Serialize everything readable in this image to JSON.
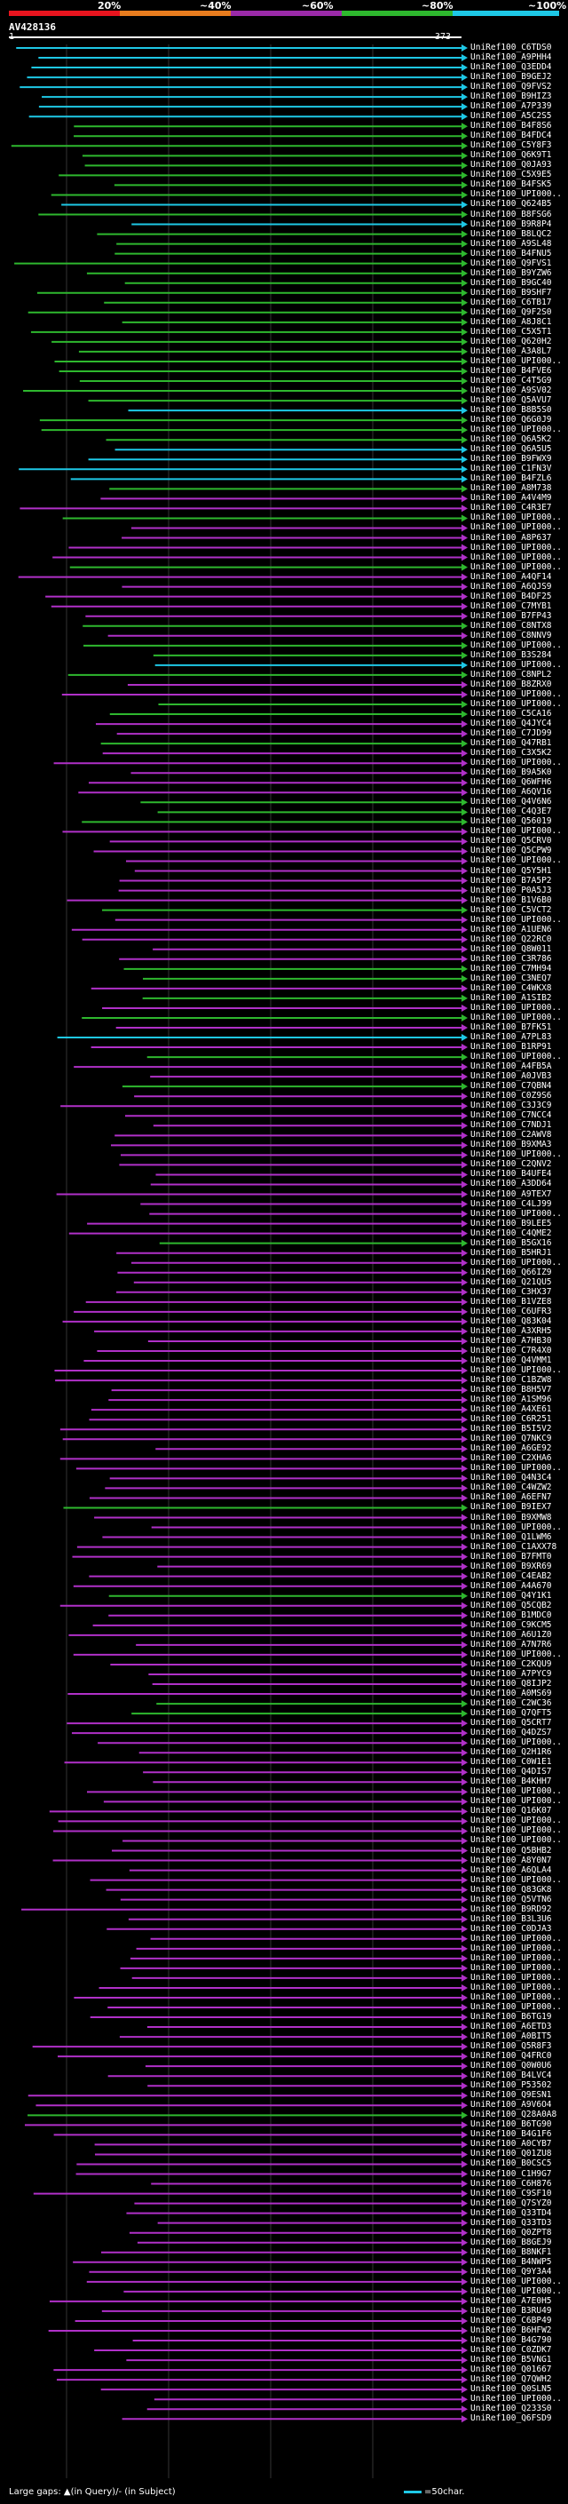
{
  "scale": {
    "ticks": [
      "20%",
      "~40%",
      "~60%",
      "~80%",
      "~100%"
    ],
    "colors": [
      "#e8141e",
      "#e87c1e",
      "#9a2aa8",
      "#2eb82e",
      "#1ec8e6"
    ]
  },
  "query": {
    "title": "AV428136",
    "start": "1",
    "end": "373"
  },
  "footer": {
    "gaps": "Large gaps: ▲(in Query)/- (in Subject)",
    "legend": "=50char."
  },
  "colors": {
    "cyan": "#1ec8e6",
    "green": "#2eb82e",
    "magenta": "#b030c8"
  },
  "hits": [
    {
      "label": "UniRef100_C6TDS0",
      "c": "cyan"
    },
    {
      "label": "UniRef100_A9PHH4",
      "c": "cyan"
    },
    {
      "label": "UniRef100_Q3EDD4",
      "c": "cyan"
    },
    {
      "label": "UniRef100_B9GEJ2",
      "c": "cyan"
    },
    {
      "label": "UniRef100_Q9FVS2",
      "c": "cyan"
    },
    {
      "label": "UniRef100_B9HIZ3",
      "c": "cyan"
    },
    {
      "label": "UniRef100_A7P339",
      "c": "cyan"
    },
    {
      "label": "UniRef100_A5C2S5",
      "c": "cyan"
    },
    {
      "label": "UniRef100_B4F8S6",
      "c": "green"
    },
    {
      "label": "UniRef100_B4FDC4",
      "c": "green"
    },
    {
      "label": "UniRef100_C5Y8F3",
      "c": "green"
    },
    {
      "label": "UniRef100_Q6K9T1",
      "c": "green"
    },
    {
      "label": "UniRef100_Q0JA93",
      "c": "green"
    },
    {
      "label": "UniRef100_C5X9E5",
      "c": "green"
    },
    {
      "label": "UniRef100_B4FSK5",
      "c": "green"
    },
    {
      "label": "UniRef100_UPI000..",
      "c": "green"
    },
    {
      "label": "UniRef100_Q624B5",
      "c": "cyan"
    },
    {
      "label": "UniRef100_B8FSG6",
      "c": "green"
    },
    {
      "label": "UniRef100_B9R8P4",
      "c": "cyan"
    },
    {
      "label": "UniRef100_B8LQC2",
      "c": "green"
    },
    {
      "label": "UniRef100_A9SL48",
      "c": "green"
    },
    {
      "label": "UniRef100_B4FNU5",
      "c": "green"
    },
    {
      "label": "UniRef100_Q9FVS1",
      "c": "green"
    },
    {
      "label": "UniRef100_B9YZW6",
      "c": "green"
    },
    {
      "label": "UniRef100_B9GC40",
      "c": "green"
    },
    {
      "label": "UniRef100_B9SHF7",
      "c": "green"
    },
    {
      "label": "UniRef100_C6TB17",
      "c": "green"
    },
    {
      "label": "UniRef100_Q9F2S0",
      "c": "green"
    },
    {
      "label": "UniRef100_A8J8C1",
      "c": "green"
    },
    {
      "label": "UniRef100_C5X5T1",
      "c": "green"
    },
    {
      "label": "UniRef100_Q620H2",
      "c": "green"
    },
    {
      "label": "UniRef100_A3A8L7",
      "c": "green"
    },
    {
      "label": "UniRef100_UPI000..",
      "c": "green"
    },
    {
      "label": "UniRef100_B4FVE6",
      "c": "green"
    },
    {
      "label": "UniRef100_C4T5G9",
      "c": "green"
    },
    {
      "label": "UniRef100_A9SV02",
      "c": "green"
    },
    {
      "label": "UniRef100_Q5AVU7",
      "c": "green"
    },
    {
      "label": "UniRef100_B8B5S0",
      "c": "cyan"
    },
    {
      "label": "UniRef100_Q6G0J9",
      "c": "green"
    },
    {
      "label": "UniRef100_UPI000..",
      "c": "green"
    },
    {
      "label": "UniRef100_Q6A5K2",
      "c": "green"
    },
    {
      "label": "UniRef100_Q6A5U5",
      "c": "cyan"
    },
    {
      "label": "UniRef100_B9FWX9",
      "c": "cyan"
    },
    {
      "label": "UniRef100_C1FN3V",
      "c": "cyan"
    },
    {
      "label": "UniRef100_B4FZL6",
      "c": "cyan"
    },
    {
      "label": "UniRef100_A8M738",
      "c": "green"
    },
    {
      "label": "UniRef100_A4V4M9",
      "c": "magenta"
    },
    {
      "label": "UniRef100_C4R3E7",
      "c": "magenta"
    },
    {
      "label": "UniRef100_UPI000..",
      "c": "green"
    },
    {
      "label": "UniRef100_UPI000..",
      "c": "magenta"
    },
    {
      "label": "UniRef100_A8P637",
      "c": "magenta"
    },
    {
      "label": "UniRef100_UPI000..",
      "c": "magenta"
    },
    {
      "label": "UniRef100_UPI000..",
      "c": "magenta"
    },
    {
      "label": "UniRef100_UPI000..",
      "c": "green"
    },
    {
      "label": "UniRef100_A4QF14",
      "c": "magenta"
    },
    {
      "label": "UniRef100_A6QJS9",
      "c": "magenta"
    },
    {
      "label": "UniRef100_B4DF25",
      "c": "magenta"
    },
    {
      "label": "UniRef100_C7MYB1",
      "c": "magenta"
    },
    {
      "label": "UniRef100_B7FP43",
      "c": "magenta"
    },
    {
      "label": "UniRef100_C8NTX8",
      "c": "green"
    },
    {
      "label": "UniRef100_C8NNV9",
      "c": "magenta"
    },
    {
      "label": "UniRef100_UPI000..",
      "c": "green"
    },
    {
      "label": "UniRef100_B3S284",
      "c": "green"
    },
    {
      "label": "UniRef100_UPI000..",
      "c": "cyan"
    },
    {
      "label": "UniRef100_C8NPL2",
      "c": "green"
    },
    {
      "label": "UniRef100_B8ZRX0",
      "c": "magenta"
    },
    {
      "label": "UniRef100_UPI000..",
      "c": "magenta"
    },
    {
      "label": "UniRef100_UPI000..",
      "c": "green"
    },
    {
      "label": "UniRef100_C5CA16",
      "c": "green"
    },
    {
      "label": "UniRef100_Q4JYC4",
      "c": "magenta"
    },
    {
      "label": "UniRef100_C7JD99",
      "c": "magenta"
    },
    {
      "label": "UniRef100_Q47RB1",
      "c": "green"
    },
    {
      "label": "UniRef100_C3X5K2",
      "c": "magenta"
    },
    {
      "label": "UniRef100_UPI000..",
      "c": "magenta"
    },
    {
      "label": "UniRef100_B9A5K0",
      "c": "magenta"
    },
    {
      "label": "UniRef100_Q6WFH6",
      "c": "magenta"
    },
    {
      "label": "UniRef100_A6QV16",
      "c": "magenta"
    },
    {
      "label": "UniRef100_Q4V6N6",
      "c": "green"
    },
    {
      "label": "UniRef100_C4Q3E7",
      "c": "green"
    },
    {
      "label": "UniRef100_Q56019",
      "c": "green"
    },
    {
      "label": "UniRef100_UPI000..",
      "c": "magenta"
    },
    {
      "label": "UniRef100_Q5CRV0",
      "c": "magenta"
    },
    {
      "label": "UniRef100_Q5CPW9",
      "c": "magenta"
    },
    {
      "label": "UniRef100_UPI000..",
      "c": "magenta"
    },
    {
      "label": "UniRef100_Q5Y5H1",
      "c": "magenta"
    },
    {
      "label": "UniRef100_B7A5P2",
      "c": "magenta"
    },
    {
      "label": "UniRef100_P0A5J3",
      "c": "magenta"
    },
    {
      "label": "UniRef100_B1V6B0",
      "c": "magenta"
    },
    {
      "label": "UniRef100_C5VCT2",
      "c": "green"
    },
    {
      "label": "UniRef100_UPI000..",
      "c": "magenta"
    },
    {
      "label": "UniRef100_A1UEN6",
      "c": "magenta"
    },
    {
      "label": "UniRef100_Q22RC0",
      "c": "magenta"
    },
    {
      "label": "UniRef100_Q8W011",
      "c": "magenta"
    },
    {
      "label": "UniRef100_C3R786",
      "c": "magenta"
    },
    {
      "label": "UniRef100_C7MH94",
      "c": "green"
    },
    {
      "label": "UniRef100_C3NEQ7",
      "c": "green"
    },
    {
      "label": "UniRef100_C4WKX8",
      "c": "magenta"
    },
    {
      "label": "UniRef100_A1SIB2",
      "c": "green"
    },
    {
      "label": "UniRef100_UPI000..",
      "c": "magenta"
    },
    {
      "label": "UniRef100_UPI000..",
      "c": "green"
    },
    {
      "label": "UniRef100_B7FK51",
      "c": "magenta"
    },
    {
      "label": "UniRef100_A7PL83",
      "c": "cyan"
    },
    {
      "label": "UniRef100_B1RP91",
      "c": "magenta"
    },
    {
      "label": "UniRef100_UPI000..",
      "c": "green"
    },
    {
      "label": "UniRef100_A4FB5A",
      "c": "magenta"
    },
    {
      "label": "UniRef100_A0JVB3",
      "c": "magenta"
    },
    {
      "label": "UniRef100_C7QBN4",
      "c": "green"
    },
    {
      "label": "UniRef100_C0Z9S6",
      "c": "magenta"
    },
    {
      "label": "UniRef100_C3J3C9",
      "c": "magenta"
    },
    {
      "label": "UniRef100_C7NCC4",
      "c": "magenta"
    },
    {
      "label": "UniRef100_C7NDJ1",
      "c": "magenta"
    },
    {
      "label": "UniRef100_C2AWV8",
      "c": "magenta"
    },
    {
      "label": "UniRef100_B9XMA3",
      "c": "magenta"
    },
    {
      "label": "UniRef100_UPI000..",
      "c": "magenta"
    },
    {
      "label": "UniRef100_C2QNV2",
      "c": "magenta"
    },
    {
      "label": "UniRef100_B4UFE4",
      "c": "magenta"
    },
    {
      "label": "UniRef100_A3DD64",
      "c": "magenta"
    },
    {
      "label": "UniRef100_A9TEX7",
      "c": "magenta"
    },
    {
      "label": "UniRef100_C4LJ99",
      "c": "magenta"
    },
    {
      "label": "UniRef100_UPI000..",
      "c": "magenta"
    },
    {
      "label": "UniRef100_B9LEE5",
      "c": "magenta"
    },
    {
      "label": "UniRef100_C4QME2",
      "c": "magenta"
    },
    {
      "label": "UniRef100_B5GX16",
      "c": "green"
    },
    {
      "label": "UniRef100_B5HRJ1",
      "c": "magenta"
    },
    {
      "label": "UniRef100_UPI000..",
      "c": "magenta"
    },
    {
      "label": "UniRef100_Q66IZ9",
      "c": "magenta"
    },
    {
      "label": "UniRef100_Q21QU5",
      "c": "magenta"
    },
    {
      "label": "UniRef100_C3HX37",
      "c": "magenta"
    },
    {
      "label": "UniRef100_B1VZE8",
      "c": "magenta"
    },
    {
      "label": "UniRef100_C6UFR3",
      "c": "magenta"
    },
    {
      "label": "UniRef100_Q83K04",
      "c": "magenta"
    },
    {
      "label": "UniRef100_A3XRH5",
      "c": "magenta"
    },
    {
      "label": "UniRef100_A7HB30",
      "c": "magenta"
    },
    {
      "label": "UniRef100_C7R4X0",
      "c": "magenta"
    },
    {
      "label": "UniRef100_Q4VMM1",
      "c": "magenta"
    },
    {
      "label": "UniRef100_UPI000..",
      "c": "magenta"
    },
    {
      "label": "UniRef100_C1BZW8",
      "c": "magenta"
    },
    {
      "label": "UniRef100_B8H5V7",
      "c": "magenta"
    },
    {
      "label": "UniRef100_A1SM96",
      "c": "magenta"
    },
    {
      "label": "UniRef100_A4XE61",
      "c": "magenta"
    },
    {
      "label": "UniRef100_C6R251",
      "c": "magenta"
    },
    {
      "label": "UniRef100_B5I5V2",
      "c": "magenta"
    },
    {
      "label": "UniRef100_Q7NKC9",
      "c": "magenta"
    },
    {
      "label": "UniRef100_A6GE92",
      "c": "magenta"
    },
    {
      "label": "UniRef100_C2XHA6",
      "c": "magenta"
    },
    {
      "label": "UniRef100_UPI000..",
      "c": "magenta"
    },
    {
      "label": "UniRef100_Q4N3C4",
      "c": "magenta"
    },
    {
      "label": "UniRef100_C4WZW2",
      "c": "magenta"
    },
    {
      "label": "UniRef100_A6EFN7",
      "c": "magenta"
    },
    {
      "label": "UniRef100_B9IEX7",
      "c": "green"
    },
    {
      "label": "UniRef100_B9XMW8",
      "c": "magenta"
    },
    {
      "label": "UniRef100_UPI000..",
      "c": "magenta"
    },
    {
      "label": "UniRef100_Q1LWM6",
      "c": "magenta"
    },
    {
      "label": "UniRef100_C1AXX78",
      "c": "magenta"
    },
    {
      "label": "UniRef100_B7FMT0",
      "c": "magenta"
    },
    {
      "label": "UniRef100_B9XR69",
      "c": "magenta"
    },
    {
      "label": "UniRef100_C4EAB2",
      "c": "magenta"
    },
    {
      "label": "UniRef100_A4A670",
      "c": "magenta"
    },
    {
      "label": "UniRef100_Q4Y1K1",
      "c": "green"
    },
    {
      "label": "UniRef100_Q5CQB2",
      "c": "magenta"
    },
    {
      "label": "UniRef100_B1MDC0",
      "c": "magenta"
    },
    {
      "label": "UniRef100_C9KCM5",
      "c": "magenta"
    },
    {
      "label": "UniRef100_A6U1Z0",
      "c": "magenta"
    },
    {
      "label": "UniRef100_A7N7R6",
      "c": "magenta"
    },
    {
      "label": "UniRef100_UPI000..",
      "c": "magenta"
    },
    {
      "label": "UniRef100_C2KQU9",
      "c": "magenta"
    },
    {
      "label": "UniRef100_A7PYC9",
      "c": "magenta"
    },
    {
      "label": "UniRef100_Q8IJP2",
      "c": "magenta"
    },
    {
      "label": "UniRef100_A0MS69",
      "c": "magenta"
    },
    {
      "label": "UniRef100_C2WC36",
      "c": "green"
    },
    {
      "label": "UniRef100_Q7QFT5",
      "c": "green"
    },
    {
      "label": "UniRef100_Q5CRT7",
      "c": "magenta"
    },
    {
      "label": "UniRef100_Q4DZS7",
      "c": "magenta"
    },
    {
      "label": "UniRef100_UPI000..",
      "c": "magenta"
    },
    {
      "label": "UniRef100_Q2H1R6",
      "c": "magenta"
    },
    {
      "label": "UniRef100_C0W1E1",
      "c": "magenta"
    },
    {
      "label": "UniRef100_Q4DIS7",
      "c": "magenta"
    },
    {
      "label": "UniRef100_B4KHH7",
      "c": "magenta"
    },
    {
      "label": "UniRef100_UPI000..",
      "c": "magenta"
    },
    {
      "label": "UniRef100_UPI000..",
      "c": "magenta"
    },
    {
      "label": "UniRef100_Q16K07",
      "c": "magenta"
    },
    {
      "label": "UniRef100_UPI000..",
      "c": "magenta"
    },
    {
      "label": "UniRef100_UPI000..",
      "c": "magenta"
    },
    {
      "label": "UniRef100_UPI000..",
      "c": "magenta"
    },
    {
      "label": "UniRef100_Q5BHB2",
      "c": "magenta"
    },
    {
      "label": "UniRef100_A8Y0N7",
      "c": "magenta"
    },
    {
      "label": "UniRef100_A6QLA4",
      "c": "magenta"
    },
    {
      "label": "UniRef100_UPI000..",
      "c": "magenta"
    },
    {
      "label": "UniRef100_Q83GK8",
      "c": "magenta"
    },
    {
      "label": "UniRef100_Q5VTN6",
      "c": "magenta"
    },
    {
      "label": "UniRef100_B9RD92",
      "c": "magenta"
    },
    {
      "label": "UniRef100_B3L3U6",
      "c": "magenta"
    },
    {
      "label": "UniRef100_C0DJA3",
      "c": "magenta"
    },
    {
      "label": "UniRef100_UPI000..",
      "c": "magenta"
    },
    {
      "label": "UniRef100_UPI000..",
      "c": "magenta"
    },
    {
      "label": "UniRef100_UPI000..",
      "c": "magenta"
    },
    {
      "label": "UniRef100_UPI000..",
      "c": "magenta"
    },
    {
      "label": "UniRef100_UPI000..",
      "c": "magenta"
    },
    {
      "label": "UniRef100_UPI000..",
      "c": "magenta"
    },
    {
      "label": "UniRef100_UPI000..",
      "c": "magenta"
    },
    {
      "label": "UniRef100_UPI000..",
      "c": "magenta"
    },
    {
      "label": "UniRef100_B6TG19",
      "c": "magenta"
    },
    {
      "label": "UniRef100_A6ETD3",
      "c": "magenta"
    },
    {
      "label": "UniRef100_A0BIT5",
      "c": "magenta"
    },
    {
      "label": "UniRef100_Q5R8F3",
      "c": "magenta"
    },
    {
      "label": "UniRef100_Q4FRC0",
      "c": "magenta"
    },
    {
      "label": "UniRef100_Q0W0U6",
      "c": "magenta"
    },
    {
      "label": "UniRef100_B4LVC4",
      "c": "magenta"
    },
    {
      "label": "UniRef100_P53502",
      "c": "magenta"
    },
    {
      "label": "UniRef100_Q9ESN1",
      "c": "magenta"
    },
    {
      "label": "UniRef100_A9V6O4",
      "c": "magenta"
    },
    {
      "label": "UniRef100_Q28A0A8",
      "c": "green"
    },
    {
      "label": "UniRef100_B6TG90",
      "c": "magenta"
    },
    {
      "label": "UniRef100_B4G1F6",
      "c": "magenta"
    },
    {
      "label": "UniRef100_A0CYB7",
      "c": "magenta"
    },
    {
      "label": "UniRef100_Q01ZU8",
      "c": "magenta"
    },
    {
      "label": "UniRef100_B0CSC5",
      "c": "magenta"
    },
    {
      "label": "UniRef100_C1H9G7",
      "c": "magenta"
    },
    {
      "label": "UniRef100_C6H876",
      "c": "magenta"
    },
    {
      "label": "UniRef100_C9SF10",
      "c": "magenta"
    },
    {
      "label": "UniRef100_Q7SYZ0",
      "c": "magenta"
    },
    {
      "label": "UniRef100_Q33TD4",
      "c": "magenta"
    },
    {
      "label": "UniRef100_Q33TD3",
      "c": "magenta"
    },
    {
      "label": "UniRef100_Q0ZPT8",
      "c": "magenta"
    },
    {
      "label": "UniRef100_B8GEJ9",
      "c": "magenta"
    },
    {
      "label": "UniRef100_B8NKF1",
      "c": "magenta"
    },
    {
      "label": "UniRef100_B4NWP5",
      "c": "magenta"
    },
    {
      "label": "UniRef100_Q9Y3A4",
      "c": "magenta"
    },
    {
      "label": "UniRef100_UPI000..",
      "c": "magenta"
    },
    {
      "label": "UniRef100_UPI000..",
      "c": "magenta"
    },
    {
      "label": "UniRef100_A7E0H5",
      "c": "magenta"
    },
    {
      "label": "UniRef100_B3RU49",
      "c": "magenta"
    },
    {
      "label": "UniRef100_C6BP49",
      "c": "magenta"
    },
    {
      "label": "UniRef100_B6HFW2",
      "c": "magenta"
    },
    {
      "label": "UniRef100_B4G790",
      "c": "magenta"
    },
    {
      "label": "UniRef100_C0ZDK7",
      "c": "magenta"
    },
    {
      "label": "UniRef100_B5VNG1",
      "c": "magenta"
    },
    {
      "label": "UniRef100_Q01667",
      "c": "magenta"
    },
    {
      "label": "UniRef100_Q7QWH2",
      "c": "magenta"
    },
    {
      "label": "UniRef100_Q0SLN5",
      "c": "magenta"
    },
    {
      "label": "UniRef100_UPI000..",
      "c": "magenta"
    },
    {
      "label": "UniRef100_Q233S0",
      "c": "magenta"
    },
    {
      "label": "UniRef100_Q6FSD9",
      "c": "magenta"
    }
  ]
}
